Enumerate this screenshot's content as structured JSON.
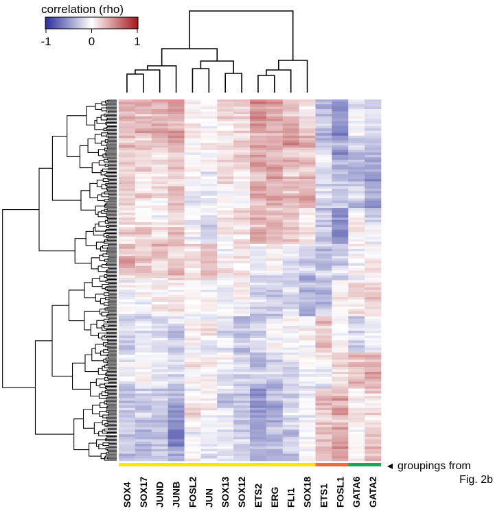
{
  "chart_data": {
    "type": "heatmap",
    "legend": {
      "title": "correlation (rho)",
      "ticks": [
        "-1",
        "0",
        "1"
      ],
      "range": [
        -1,
        1
      ],
      "colors": {
        "low": "#2b2f9a",
        "mid": "#ffffff",
        "high": "#a3161b"
      },
      "placement": "top-left"
    },
    "columns": [
      "SOX4",
      "SOX17",
      "JUND",
      "JUNB",
      "FOSL2",
      "JUN",
      "SOX13",
      "SOX12",
      "ETS2",
      "ERG",
      "FLI1",
      "SOX18",
      "ETS1",
      "FOSL1",
      "GATA6",
      "GATA2"
    ],
    "column_tree": [
      [
        [
          [
            [
              "SOX4",
              "SOX17"
            ],
            "JUND"
          ],
          "JUNB"
        ],
        [
          [
            "FOSL2",
            "JUN"
          ],
          [
            "SOX13",
            "SOX12"
          ]
        ]
      ],
      [
        [
          [
            [
              "ETS2",
              "ERG"
            ],
            "FLI1"
          ],
          "SOX18"
        ]
      ],
      [
        [
          "ETS1",
          "FOSL1"
        ],
        [
          "GATA6",
          "GATA2"
        ]
      ]
    ],
    "row_block_means": [
      [
        0.3,
        0.25,
        0.3,
        0.4,
        0,
        0.05,
        0.15,
        0.2,
        0.4,
        0.35,
        0.25,
        0.1,
        -0.35,
        -0.5,
        -0.05,
        -0.2
      ],
      [
        0.3,
        0.2,
        0.15,
        0.35,
        -0.05,
        0.1,
        0.1,
        0.2,
        0.45,
        0.4,
        0.35,
        0.3,
        -0.2,
        -0.4,
        -0.35,
        -0.4
      ],
      [
        0.1,
        0.15,
        0.05,
        0.25,
        -0.1,
        -0.1,
        0.05,
        -0.05,
        0.35,
        0.3,
        0.3,
        0.3,
        -0.2,
        -0.3,
        -0.3,
        -0.45
      ],
      [
        0.1,
        0.15,
        0.1,
        0.25,
        -0.05,
        -0.15,
        0.05,
        0.1,
        0.35,
        0.3,
        0.25,
        0.2,
        -0.3,
        -0.5,
        0,
        -0.1
      ],
      [
        0.35,
        0.25,
        0.2,
        0.2,
        0.1,
        0.15,
        0.05,
        0.1,
        -0.05,
        0,
        -0.1,
        -0.2,
        -0.2,
        -0.2,
        0,
        0.1
      ],
      [
        -0.05,
        0,
        0.05,
        0,
        -0.05,
        -0.05,
        0,
        0.05,
        -0.2,
        -0.25,
        -0.15,
        -0.3,
        -0.25,
        0.05,
        0.15,
        0.15
      ],
      [
        -0.2,
        -0.15,
        -0.1,
        -0.15,
        -0.05,
        0,
        -0.1,
        -0.3,
        -0.1,
        -0.05,
        -0.05,
        0.1,
        0.2,
        0,
        -0.2,
        -0.1
      ],
      [
        -0.1,
        -0.05,
        -0.05,
        -0.2,
        0,
        0.05,
        0,
        -0.1,
        -0.3,
        -0.3,
        -0.15,
        -0.1,
        -0.05,
        0.2,
        0.3,
        0.35
      ],
      [
        -0.3,
        -0.25,
        -0.25,
        -0.4,
        0,
        -0.05,
        -0.15,
        -0.2,
        -0.4,
        -0.35,
        -0.2,
        -0.1,
        0.25,
        0.35,
        0,
        0.15
      ],
      [
        -0.35,
        -0.3,
        -0.3,
        -0.45,
        -0.05,
        -0.1,
        -0.15,
        -0.2,
        -0.45,
        -0.4,
        -0.25,
        -0.1,
        0.2,
        0.35,
        0.05,
        0.25
      ]
    ],
    "groups": [
      {
        "columns": 12,
        "color": "#ffe600"
      },
      {
        "columns": 2,
        "color": "#ef6a3a"
      },
      {
        "columns": 2,
        "color": "#14a85a"
      }
    ],
    "annotation": {
      "line1": "groupings from",
      "line2": "Fig. 2b",
      "marker": "◂"
    }
  }
}
